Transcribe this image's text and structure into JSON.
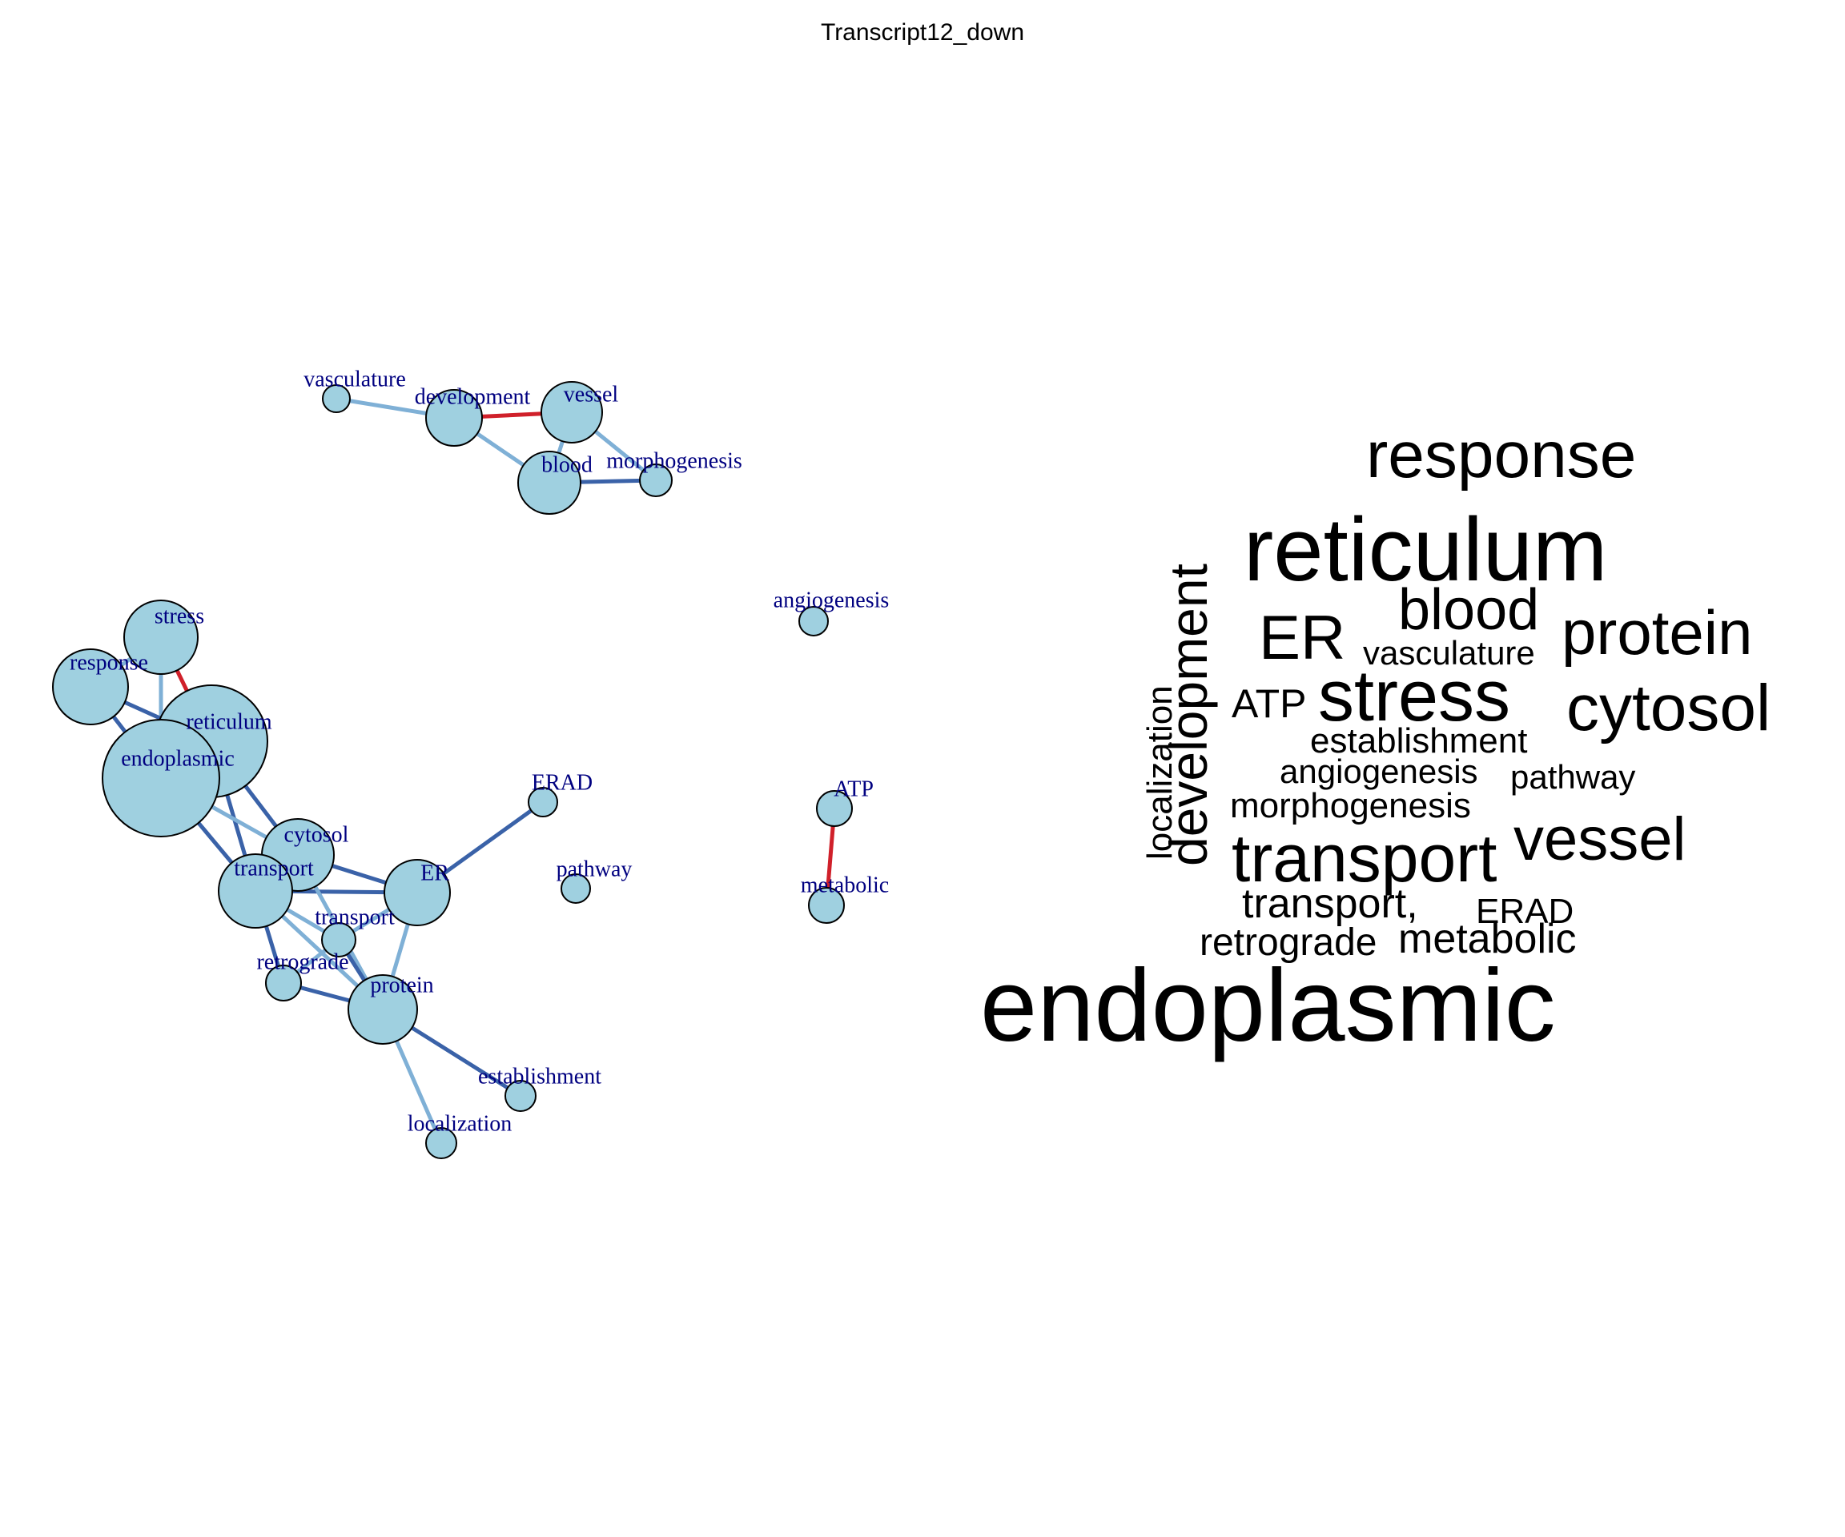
{
  "title": "Transcript12_down",
  "colors": {
    "node_fill": "#9fd0e0",
    "label": "#000080",
    "edge_light": "#7fb0d6",
    "edge_dark": "#3a62a8",
    "edge_red": "#d0202a"
  },
  "network": {
    "nodes": [
      {
        "id": "vasculature",
        "label": "vasculature"
      },
      {
        "id": "development",
        "label": "development"
      },
      {
        "id": "vessel",
        "label": "vessel"
      },
      {
        "id": "blood",
        "label": "blood"
      },
      {
        "id": "morphogenesis",
        "label": "morphogenesis"
      },
      {
        "id": "angiogenesis",
        "label": "angiogenesis"
      },
      {
        "id": "stress",
        "label": "stress"
      },
      {
        "id": "response",
        "label": "response"
      },
      {
        "id": "reticulum",
        "label": "reticulum"
      },
      {
        "id": "endoplasmic",
        "label": "endoplasmic"
      },
      {
        "id": "cytosol",
        "label": "cytosol"
      },
      {
        "id": "transport",
        "label": "transport"
      },
      {
        "id": "ER",
        "label": "ER"
      },
      {
        "id": "ERAD",
        "label": "ERAD"
      },
      {
        "id": "pathway",
        "label": "pathway"
      },
      {
        "id": "ATP",
        "label": "ATP"
      },
      {
        "id": "metabolic",
        "label": "metabolic"
      },
      {
        "id": "transport_comma",
        "label": "transport"
      },
      {
        "id": "retrograde",
        "label": "retrograde"
      },
      {
        "id": "protein",
        "label": "protein"
      },
      {
        "id": "establishment",
        "label": "establishment"
      },
      {
        "id": "localization",
        "label": "localization"
      }
    ],
    "edges": [
      {
        "source": "vasculature",
        "target": "development",
        "tone": "light"
      },
      {
        "source": "development",
        "target": "vessel",
        "tone": "red"
      },
      {
        "source": "development",
        "target": "blood",
        "tone": "light"
      },
      {
        "source": "vessel",
        "target": "blood",
        "tone": "light"
      },
      {
        "source": "vessel",
        "target": "morphogenesis",
        "tone": "light"
      },
      {
        "source": "blood",
        "target": "morphogenesis",
        "tone": "dark"
      },
      {
        "source": "stress",
        "target": "reticulum",
        "tone": "red"
      },
      {
        "source": "stress",
        "target": "response",
        "tone": "light"
      },
      {
        "source": "stress",
        "target": "endoplasmic",
        "tone": "light"
      },
      {
        "source": "response",
        "target": "reticulum",
        "tone": "dark"
      },
      {
        "source": "response",
        "target": "endoplasmic",
        "tone": "dark"
      },
      {
        "source": "reticulum",
        "target": "endoplasmic",
        "tone": "dark"
      },
      {
        "source": "reticulum",
        "target": "cytosol",
        "tone": "dark"
      },
      {
        "source": "reticulum",
        "target": "transport",
        "tone": "dark"
      },
      {
        "source": "endoplasmic",
        "target": "cytosol",
        "tone": "light"
      },
      {
        "source": "endoplasmic",
        "target": "transport",
        "tone": "dark"
      },
      {
        "source": "transport",
        "target": "ER",
        "tone": "dark"
      },
      {
        "source": "transport",
        "target": "transport_comma",
        "tone": "light"
      },
      {
        "source": "transport",
        "target": "retrograde",
        "tone": "dark"
      },
      {
        "source": "transport",
        "target": "protein",
        "tone": "light"
      },
      {
        "source": "cytosol",
        "target": "protein",
        "tone": "light"
      },
      {
        "source": "cytosol",
        "target": "ER",
        "tone": "dark"
      },
      {
        "source": "ER",
        "target": "ERAD",
        "tone": "dark"
      },
      {
        "source": "ER",
        "target": "protein",
        "tone": "light"
      },
      {
        "source": "ER",
        "target": "transport_comma",
        "tone": "light"
      },
      {
        "source": "retrograde",
        "target": "protein",
        "tone": "dark"
      },
      {
        "source": "transport_comma",
        "target": "protein",
        "tone": "dark"
      },
      {
        "source": "retrograde",
        "target": "transport_comma",
        "tone": "light"
      },
      {
        "source": "protein",
        "target": "establishment",
        "tone": "dark"
      },
      {
        "source": "protein",
        "target": "localization",
        "tone": "light"
      },
      {
        "source": "ATP",
        "target": "metabolic",
        "tone": "red"
      }
    ]
  },
  "wordcloud": [
    {
      "word": "response",
      "rotated": false
    },
    {
      "word": "reticulum",
      "rotated": false
    },
    {
      "word": "development",
      "rotated": true
    },
    {
      "word": "ER",
      "rotated": false
    },
    {
      "word": "blood",
      "rotated": false
    },
    {
      "word": "protein",
      "rotated": false
    },
    {
      "word": "vasculature",
      "rotated": false
    },
    {
      "word": "localization",
      "rotated": true
    },
    {
      "word": "ATP",
      "rotated": false
    },
    {
      "word": "stress",
      "rotated": false
    },
    {
      "word": "cytosol",
      "rotated": false
    },
    {
      "word": "establishment",
      "rotated": false
    },
    {
      "word": "angiogenesis",
      "rotated": false
    },
    {
      "word": "pathway",
      "rotated": false
    },
    {
      "word": "morphogenesis",
      "rotated": false
    },
    {
      "word": "transport",
      "rotated": false
    },
    {
      "word": "vessel",
      "rotated": false
    },
    {
      "word": "transport,",
      "rotated": false
    },
    {
      "word": "ERAD",
      "rotated": false
    },
    {
      "word": "retrograde",
      "rotated": false
    },
    {
      "word": "metabolic",
      "rotated": false
    },
    {
      "word": "endoplasmic",
      "rotated": false
    }
  ]
}
